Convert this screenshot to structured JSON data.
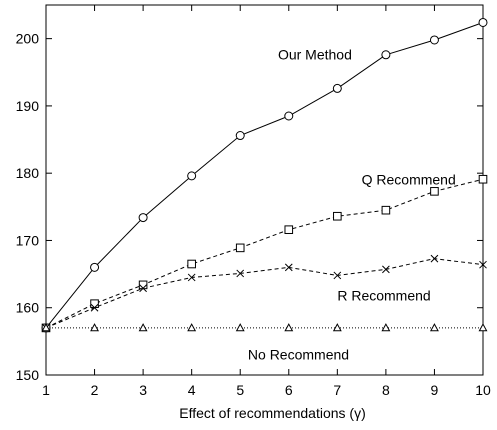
{
  "chart_data": {
    "type": "line",
    "title": "",
    "xlabel": "Effect of recommendations (γ)",
    "ylabel": "",
    "x": [
      1,
      2,
      3,
      4,
      5,
      6,
      7,
      8,
      9,
      10
    ],
    "xlim": [
      1,
      10
    ],
    "ylim": [
      150,
      205
    ],
    "xticks": [
      1,
      2,
      3,
      4,
      5,
      6,
      7,
      8,
      9,
      10
    ],
    "yticks": [
      150,
      160,
      170,
      180,
      190,
      200
    ],
    "grid": false,
    "legend": "none",
    "series": [
      {
        "name": "Our Method",
        "values": [
          157,
          166,
          173.4,
          179.6,
          185.6,
          188.5,
          192.6,
          197.6,
          199.8,
          202.4
        ],
        "marker": "circle",
        "linestyle": "solid"
      },
      {
        "name": "Q Recommend",
        "values": [
          157,
          160.6,
          163.4,
          166.5,
          168.9,
          171.6,
          173.6,
          174.5,
          177.3,
          179.1
        ],
        "marker": "square",
        "linestyle": "dashed"
      },
      {
        "name": "R Recommend",
        "values": [
          157,
          160,
          162.9,
          164.5,
          165.1,
          166,
          164.8,
          165.7,
          167.3,
          166.4
        ],
        "marker": "cross",
        "linestyle": "dashed"
      },
      {
        "name": "No Recommend",
        "values": [
          157,
          157,
          157,
          157,
          157,
          157,
          157,
          157,
          157,
          157
        ],
        "marker": "triangle",
        "linestyle": "dotted"
      }
    ],
    "annotations": [
      {
        "text": "Our Method",
        "series": 0
      },
      {
        "text": "Q Recommend",
        "series": 1
      },
      {
        "text": "R Recommend",
        "series": 2
      },
      {
        "text": "No Recommend",
        "series": 3
      }
    ]
  }
}
